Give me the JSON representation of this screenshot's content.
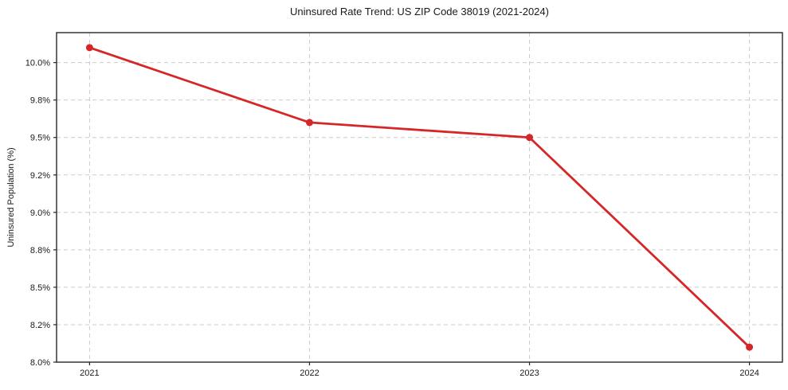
{
  "chart_data": {
    "type": "line",
    "title": "Uninsured Rate Trend: US ZIP Code 38019 (2021-2024)",
    "xlabel": "",
    "ylabel": "Uninsured Population (%)",
    "x": [
      2021,
      2022,
      2023,
      2024
    ],
    "x_tick_labels": [
      "2021",
      "2022",
      "2023",
      "2024"
    ],
    "series": [
      {
        "name": "Uninsured rate",
        "values": [
          10.1,
          9.6,
          9.5,
          8.1
        ]
      }
    ],
    "y_ticks": [
      {
        "value": 8.0,
        "label": "8.0%"
      },
      {
        "value": 8.25,
        "label": "8.2%"
      },
      {
        "value": 8.5,
        "label": "8.5%"
      },
      {
        "value": 8.75,
        "label": "8.8%"
      },
      {
        "value": 9.0,
        "label": "9.0%"
      },
      {
        "value": 9.25,
        "label": "9.2%"
      },
      {
        "value": 9.5,
        "label": "9.5%"
      },
      {
        "value": 9.75,
        "label": "9.8%"
      },
      {
        "value": 10.0,
        "label": "10.0%"
      }
    ],
    "xlim": [
      2020.85,
      2024.15
    ],
    "ylim": [
      8.0,
      10.2
    ],
    "grid": "dashed",
    "legend": "none",
    "colors": {
      "line": "#d62728",
      "marker": "#d62728",
      "grid": "#cccccc",
      "spine": "#262626",
      "tick": "#262626",
      "text": "#1a1a1a",
      "background": "#ffffff"
    }
  }
}
